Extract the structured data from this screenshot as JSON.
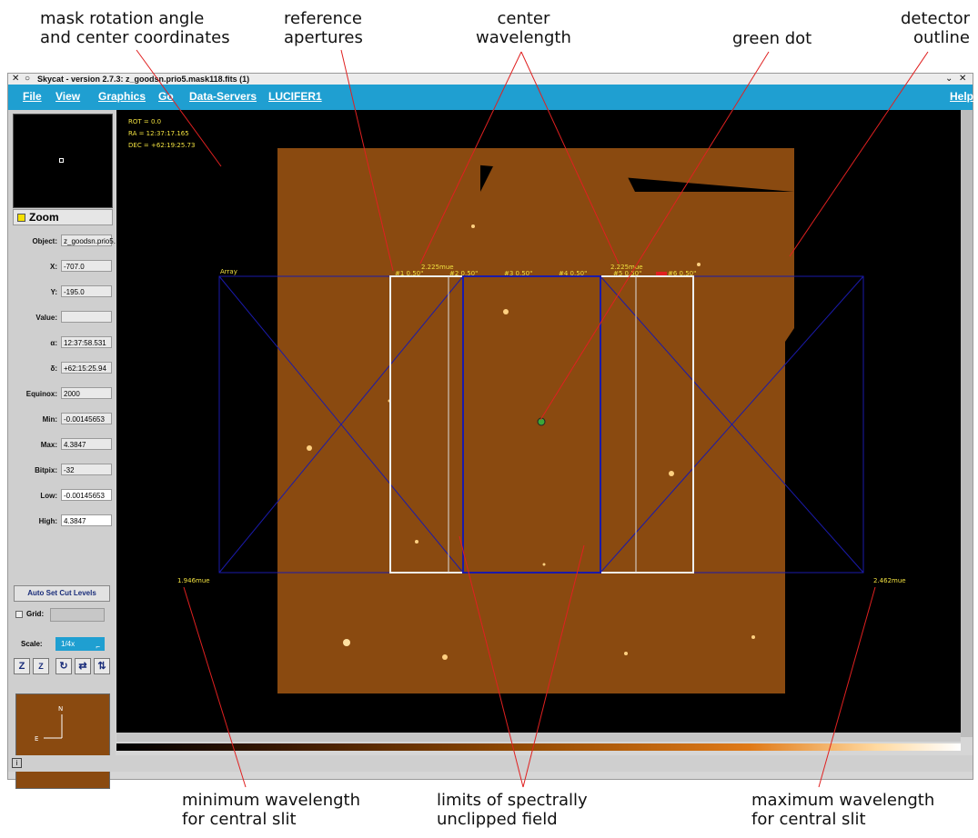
{
  "callouts": {
    "rotation": [
      "mask rotation angle",
      "and center coordinates"
    ],
    "reference": [
      "reference",
      "apertures"
    ],
    "center_wl": [
      "center",
      "wavelength"
    ],
    "green_dot": [
      "green dot"
    ],
    "detector": [
      "detector",
      "outline"
    ],
    "min_wl": [
      "minimum wavelength",
      "for central slit"
    ],
    "limits": [
      "limits of spectrally",
      "unclipped field"
    ],
    "max_wl": [
      "maximum wavelength",
      "for central slit"
    ]
  },
  "window": {
    "title": "Skycat - version 2.7.3: z_goodsn.prio5.mask118.fits (1)"
  },
  "menu": [
    "File",
    "View",
    "Graphics",
    "Go",
    "Data-Servers",
    "LUCIFER1"
  ],
  "help_label": "Help",
  "zoom_label": "Zoom",
  "fields": [
    {
      "label": "Object:",
      "value": "z_goodsn.prio5."
    },
    {
      "label": "X:",
      "value": "-707.0"
    },
    {
      "label": "Y:",
      "value": "-195.0"
    },
    {
      "label": "Value:",
      "value": ""
    },
    {
      "label": "α:",
      "value": "12:37:58.531"
    },
    {
      "label": "δ:",
      "value": "+62:15:25.94"
    },
    {
      "label": "Equinox:",
      "value": "2000"
    },
    {
      "label": "Min:",
      "value": "-0.00145653"
    },
    {
      "label": "Max:",
      "value": "4.3847"
    },
    {
      "label": "Bitpix:",
      "value": "-32"
    },
    {
      "label": "Low:",
      "value": "-0.00145653"
    },
    {
      "label": "High:",
      "value": "4.3847"
    }
  ],
  "auto_cut_label": "Auto Set Cut Levels",
  "grid_label": "Grid:",
  "scale": {
    "label": "Scale:",
    "value": "1/4x"
  },
  "overlay": {
    "rot": "ROT = 0.0",
    "ra": "RA = 12:37:17.165",
    "dec": "DEC = +62:19:25.73",
    "array_label": "Array",
    "center_wl_left": "2.225mue",
    "center_wl_right": "2.225mue",
    "min_wl": "1.946mue",
    "max_wl": "2.462mue",
    "slits": [
      "#1 0.50\"",
      "#2 0.50\"",
      "#3 0.50\"",
      "#4 0.50\"",
      "#5 0.50\"",
      "#6 0.50\""
    ]
  },
  "compass": {
    "north": "N",
    "east": "E"
  },
  "colors": {
    "menubar": "#1f9fd1",
    "image": "#8a4a10",
    "overlay_blue": "#1a1aaa",
    "overlay_yellow": "#f0e040",
    "callout_lines": "#e02020",
    "green_dot": "#3aa83a"
  },
  "icons": {
    "close": "x-close-icon",
    "grid": "checkbox-icon",
    "scale": "dropdown-icon",
    "status": "info-icon"
  }
}
